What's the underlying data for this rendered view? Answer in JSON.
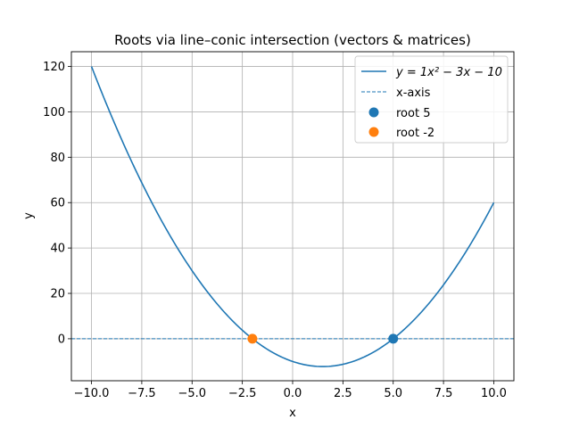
{
  "chart_data": {
    "type": "line",
    "title": "Roots via line–conic intersection (vectors & matrices)",
    "xlabel": "x",
    "ylabel": "y",
    "xlim": [
      -11.0,
      11.0
    ],
    "ylim": [
      -18.5,
      126.5
    ],
    "grid": true,
    "legend_position": "top-right",
    "x_ticks": [
      -10.0,
      -7.5,
      -5.0,
      -2.5,
      0.0,
      2.5,
      5.0,
      7.5,
      10.0
    ],
    "x_tick_labels": [
      "−10.0",
      "−7.5",
      "−5.0",
      "−2.5",
      "0.0",
      "2.5",
      "5.0",
      "7.5",
      "10.0"
    ],
    "y_ticks": [
      0,
      20,
      40,
      60,
      80,
      100,
      120
    ],
    "y_tick_labels": [
      "0",
      "20",
      "40",
      "60",
      "80",
      "100",
      "120"
    ],
    "curve": {
      "name": "y = 1x² − 3x − 10",
      "coefficients": {
        "a": 1,
        "b": -3,
        "c": -10
      },
      "x_range": [
        -10,
        10
      ],
      "color": "#1f77b4"
    },
    "baseline": {
      "name": "x-axis",
      "y": 0,
      "color": "#1f77b4",
      "style": "dashed"
    },
    "points": [
      {
        "name": "root 5",
        "x": 5,
        "y": 0,
        "color": "#1f77b4"
      },
      {
        "name": "root -2",
        "x": -2,
        "y": 0,
        "color": "#ff7f0e"
      }
    ]
  }
}
